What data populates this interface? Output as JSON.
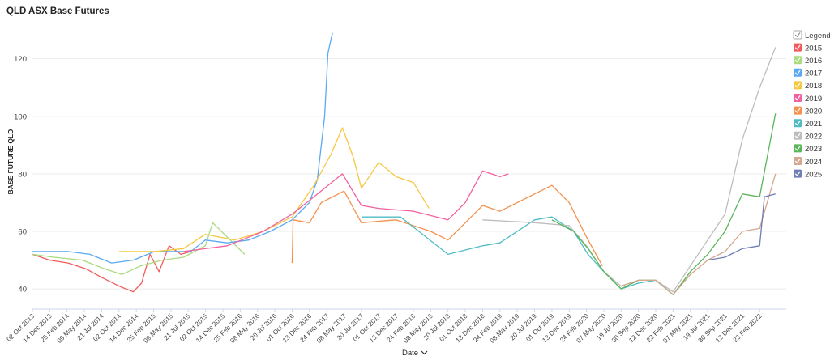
{
  "title": "QLD ASX Base Futures",
  "chart_data": {
    "type": "line",
    "title": "QLD ASX Base Futures",
    "xlabel": "Date",
    "ylabel": "BASE FUTURE QLD",
    "x_start": "2013-10-02",
    "x_end": "2022-06-15",
    "ylim": [
      33,
      132
    ],
    "yticks": [
      40,
      60,
      80,
      100,
      120
    ],
    "grid": true,
    "legend_placement": "right",
    "legend_title": "Legend",
    "xtick_labels": [
      "02 Oct 2013",
      "14 Dec 2013",
      "25 Feb 2014",
      "09 May 2014",
      "21 Jul 2014",
      "02 Oct 2014",
      "14 Dec 2014",
      "25 Feb 2015",
      "09 May 2015",
      "21 Jul 2015",
      "02 Oct 2015",
      "14 Dec 2015",
      "25 Feb 2016",
      "08 May 2016",
      "20 Jul 2016",
      "01 Oct 2016",
      "13 Dec 2016",
      "24 Feb 2017",
      "08 May 2017",
      "20 Jul 2017",
      "01 Oct 2017",
      "13 Dec 2017",
      "24 Feb 2018",
      "08 May 2018",
      "20 Jul 2018",
      "01 Oct 2018",
      "13 Dec 2018",
      "24 Feb 2019",
      "08 May 2019",
      "20 Jul 2019",
      "01 Oct 2019",
      "13 Dec 2019",
      "24 Feb 2020",
      "07 May 2020",
      "19 Jul 2020",
      "30 Sep 2020",
      "12 Dec 2020",
      "23 Feb 2021",
      "07 May 2021",
      "19 Jul 2021",
      "30 Sep 2021",
      "12 Dec 2021",
      "23 Feb 2022"
    ],
    "xtick_dates": [
      "2013-10-02",
      "2013-12-14",
      "2014-02-25",
      "2014-05-09",
      "2014-07-21",
      "2014-10-02",
      "2014-12-14",
      "2015-02-25",
      "2015-05-09",
      "2015-07-21",
      "2015-10-02",
      "2015-12-14",
      "2016-02-25",
      "2016-05-08",
      "2016-07-20",
      "2016-10-01",
      "2016-12-13",
      "2017-02-24",
      "2017-05-08",
      "2017-07-20",
      "2017-10-01",
      "2017-12-13",
      "2018-02-24",
      "2018-05-08",
      "2018-07-20",
      "2018-10-01",
      "2018-12-13",
      "2019-02-24",
      "2019-05-08",
      "2019-07-20",
      "2019-10-01",
      "2019-12-13",
      "2020-02-24",
      "2020-05-07",
      "2020-07-19",
      "2020-09-30",
      "2020-12-12",
      "2021-02-23",
      "2021-05-07",
      "2021-07-19",
      "2021-09-30",
      "2021-12-12",
      "2022-02-23"
    ],
    "series": [
      {
        "name": "2015",
        "color": "#f25a5a",
        "points": [
          [
            "2013-10-02",
            52
          ],
          [
            "2013-12-14",
            50
          ],
          [
            "2014-03-01",
            49
          ],
          [
            "2014-05-15",
            47
          ],
          [
            "2014-07-21",
            44
          ],
          [
            "2014-10-02",
            41
          ],
          [
            "2014-12-01",
            39
          ],
          [
            "2015-01-05",
            42
          ],
          [
            "2015-02-10",
            52
          ],
          [
            "2015-03-20",
            46
          ],
          [
            "2015-05-01",
            55
          ],
          [
            "2015-06-20",
            52
          ],
          [
            "2015-08-01",
            53
          ]
        ]
      },
      {
        "name": "2016",
        "color": "#a9db7f",
        "points": [
          [
            "2013-10-02",
            52
          ],
          [
            "2014-01-01",
            51
          ],
          [
            "2014-05-01",
            50
          ],
          [
            "2014-08-01",
            47
          ],
          [
            "2014-10-15",
            45
          ],
          [
            "2015-01-01",
            48
          ],
          [
            "2015-04-01",
            50
          ],
          [
            "2015-07-01",
            51
          ],
          [
            "2015-10-01",
            55
          ],
          [
            "2015-11-01",
            63
          ],
          [
            "2016-01-01",
            58
          ],
          [
            "2016-03-15",
            52
          ]
        ]
      },
      {
        "name": "2017",
        "color": "#5aa9f2",
        "points": [
          [
            "2013-10-02",
            53
          ],
          [
            "2014-03-01",
            53
          ],
          [
            "2014-06-01",
            52
          ],
          [
            "2014-09-01",
            49
          ],
          [
            "2014-12-01",
            50
          ],
          [
            "2015-03-01",
            53
          ],
          [
            "2015-08-01",
            53
          ],
          [
            "2015-10-01",
            57
          ],
          [
            "2016-01-01",
            56
          ],
          [
            "2016-04-01",
            57
          ],
          [
            "2016-07-01",
            60
          ],
          [
            "2016-10-01",
            64
          ],
          [
            "2016-12-13",
            70
          ],
          [
            "2017-01-15",
            78
          ],
          [
            "2017-02-15",
            100
          ],
          [
            "2017-03-01",
            122
          ],
          [
            "2017-03-20",
            129
          ]
        ]
      },
      {
        "name": "2018",
        "color": "#f5c842",
        "points": [
          [
            "2014-10-02",
            53
          ],
          [
            "2015-03-01",
            53
          ],
          [
            "2015-07-01",
            54
          ],
          [
            "2015-10-01",
            59
          ],
          [
            "2016-02-01",
            57
          ],
          [
            "2016-06-01",
            60
          ],
          [
            "2016-10-01",
            65
          ],
          [
            "2017-01-01",
            76
          ],
          [
            "2017-03-15",
            87
          ],
          [
            "2017-05-01",
            96
          ],
          [
            "2017-06-15",
            86
          ],
          [
            "2017-07-20",
            75
          ],
          [
            "2017-10-01",
            84
          ],
          [
            "2017-12-13",
            79
          ],
          [
            "2018-02-24",
            77
          ],
          [
            "2018-05-01",
            68
          ]
        ]
      },
      {
        "name": "2019",
        "color": "#f2609e",
        "points": [
          [
            "2015-07-01",
            53
          ],
          [
            "2016-01-01",
            55
          ],
          [
            "2016-06-01",
            60
          ],
          [
            "2016-10-01",
            66
          ],
          [
            "2017-01-01",
            72
          ],
          [
            "2017-05-01",
            80
          ],
          [
            "2017-07-20",
            69
          ],
          [
            "2017-10-01",
            68
          ],
          [
            "2018-02-24",
            67
          ],
          [
            "2018-07-20",
            64
          ],
          [
            "2018-10-01",
            70
          ],
          [
            "2018-12-13",
            81
          ],
          [
            "2019-02-24",
            79
          ],
          [
            "2019-04-01",
            80
          ]
        ]
      },
      {
        "name": "2020",
        "color": "#f5914e",
        "points": [
          [
            "2016-10-01",
            49
          ],
          [
            "2016-10-05",
            64
          ],
          [
            "2016-12-13",
            63
          ],
          [
            "2017-02-01",
            70
          ],
          [
            "2017-05-08",
            74
          ],
          [
            "2017-07-20",
            63
          ],
          [
            "2017-12-13",
            64
          ],
          [
            "2018-05-08",
            60
          ],
          [
            "2018-07-20",
            57
          ],
          [
            "2018-10-01",
            63
          ],
          [
            "2018-12-13",
            69
          ],
          [
            "2019-02-24",
            67
          ],
          [
            "2019-07-20",
            73
          ],
          [
            "2019-10-01",
            76
          ],
          [
            "2019-12-13",
            70
          ],
          [
            "2020-02-24",
            58
          ],
          [
            "2020-05-01",
            48
          ]
        ]
      },
      {
        "name": "2021",
        "color": "#4fbcc4",
        "points": [
          [
            "2017-07-20",
            65
          ],
          [
            "2018-01-01",
            65
          ],
          [
            "2018-07-20",
            52
          ],
          [
            "2018-12-13",
            55
          ],
          [
            "2019-02-24",
            56
          ],
          [
            "2019-07-20",
            64
          ],
          [
            "2019-10-01",
            65
          ],
          [
            "2020-01-01",
            60
          ],
          [
            "2020-03-01",
            52
          ],
          [
            "2020-05-07",
            46
          ],
          [
            "2020-07-19",
            40
          ],
          [
            "2020-09-30",
            42
          ],
          [
            "2020-12-12",
            43
          ],
          [
            "2021-02-23",
            38
          ]
        ]
      },
      {
        "name": "2022",
        "color": "#bdbdbd",
        "points": [
          [
            "2018-12-13",
            64
          ],
          [
            "2019-07-20",
            63
          ],
          [
            "2019-12-13",
            62
          ],
          [
            "2020-02-24",
            55
          ],
          [
            "2020-05-07",
            46
          ],
          [
            "2020-07-19",
            41
          ],
          [
            "2020-09-30",
            43
          ],
          [
            "2020-12-12",
            43
          ],
          [
            "2021-02-23",
            39
          ],
          [
            "2021-05-07",
            48
          ],
          [
            "2021-07-19",
            57
          ],
          [
            "2021-09-30",
            66
          ],
          [
            "2021-12-12",
            92
          ],
          [
            "2022-02-23",
            110
          ],
          [
            "2022-05-01",
            124
          ]
        ]
      },
      {
        "name": "2023",
        "color": "#5bb55b",
        "points": [
          [
            "2019-10-01",
            64
          ],
          [
            "2020-01-01",
            60
          ],
          [
            "2020-03-01",
            54
          ],
          [
            "2020-05-07",
            46
          ],
          [
            "2020-07-19",
            40
          ],
          [
            "2020-09-30",
            43
          ],
          [
            "2020-12-12",
            43
          ],
          [
            "2021-02-23",
            38
          ],
          [
            "2021-05-07",
            46
          ],
          [
            "2021-07-19",
            52
          ],
          [
            "2021-09-30",
            60
          ],
          [
            "2021-12-12",
            73
          ],
          [
            "2022-02-23",
            72
          ],
          [
            "2022-05-01",
            101
          ]
        ]
      },
      {
        "name": "2024",
        "color": "#d4a78e",
        "points": [
          [
            "2020-07-19",
            41
          ],
          [
            "2020-09-30",
            43
          ],
          [
            "2020-12-12",
            43
          ],
          [
            "2021-02-23",
            38
          ],
          [
            "2021-05-07",
            45
          ],
          [
            "2021-07-19",
            50
          ],
          [
            "2021-09-30",
            53
          ],
          [
            "2021-12-12",
            60
          ],
          [
            "2022-02-23",
            61
          ],
          [
            "2022-05-01",
            80
          ]
        ]
      },
      {
        "name": "2025",
        "color": "#6f7eb5",
        "points": [
          [
            "2021-07-19",
            50
          ],
          [
            "2021-09-30",
            51
          ],
          [
            "2021-12-12",
            54
          ],
          [
            "2022-02-23",
            55
          ],
          [
            "2022-03-15",
            72
          ],
          [
            "2022-05-01",
            73
          ]
        ]
      }
    ]
  }
}
